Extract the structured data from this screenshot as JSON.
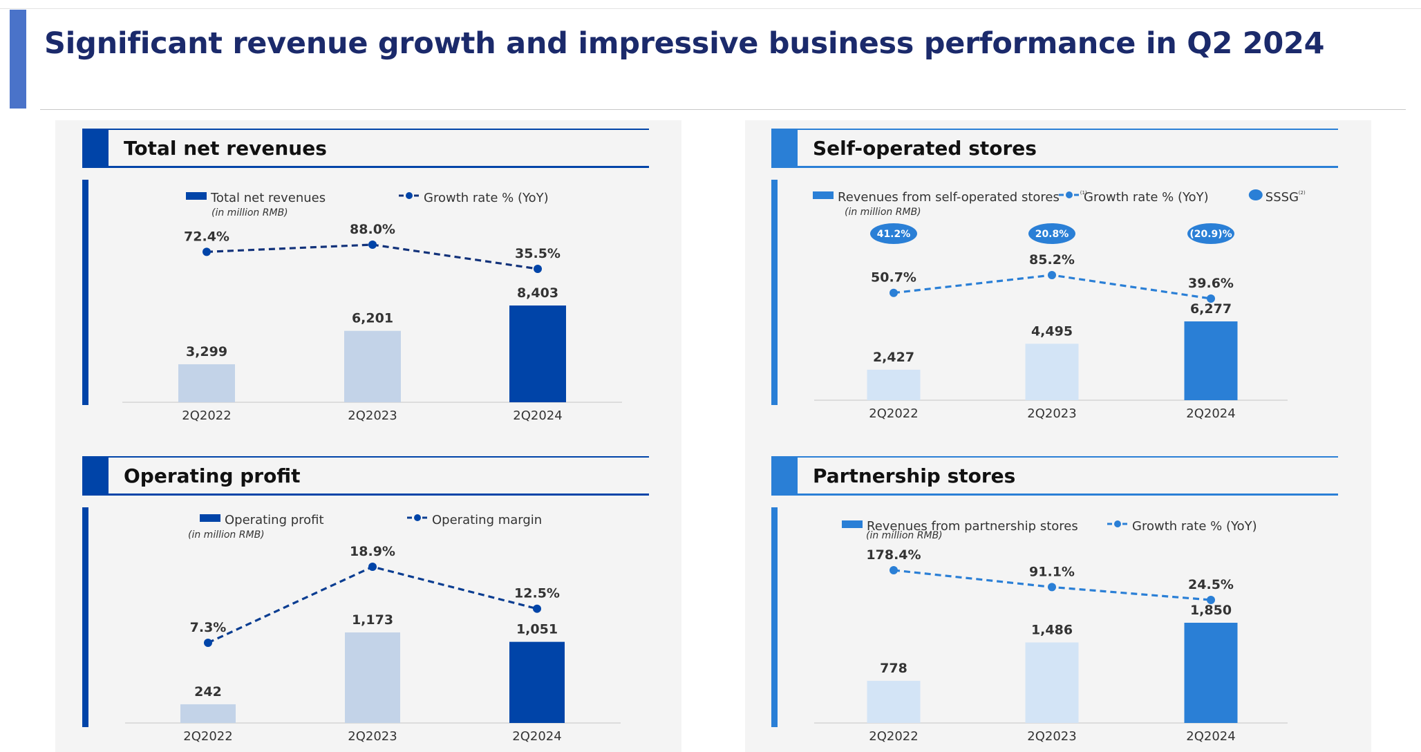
{
  "page_title": "Significant revenue growth and impressive business performance in Q2 2024",
  "colors": {
    "dark_blue": "#0044a8",
    "mid_blue": "#2a7fd6",
    "light_gray_blue": "#c3d3e8",
    "light_blue": "#d3e4f6",
    "title_navy": "#1b2a6b",
    "accent_bar": "#4a73c9"
  },
  "chart_data": [
    {
      "type": "bar",
      "title": "Total net revenues",
      "categories": [
        "2Q2022",
        "2Q2023",
        "2Q2024"
      ],
      "series": [
        {
          "name": "Total net revenues",
          "unit_note": "(in million RMB)",
          "values": [
            3299,
            6201,
            8403
          ],
          "value_labels": [
            "3,299",
            "6,201",
            "8,403"
          ]
        },
        {
          "name": "Growth rate % (YoY)",
          "type": "line",
          "values": [
            72.4,
            88.0,
            35.5
          ],
          "value_labels": [
            "72.4%",
            "88.0%",
            "35.5%"
          ]
        }
      ],
      "legend_position": "top",
      "grid": false
    },
    {
      "type": "bar",
      "title": "Self-operated stores",
      "categories": [
        "2Q2022",
        "2Q2023",
        "2Q2024"
      ],
      "series": [
        {
          "name": "Revenues from self-operated stores",
          "footnote": "(1)",
          "unit_note": "(in million RMB)",
          "values": [
            2427,
            4495,
            6277
          ],
          "value_labels": [
            "2,427",
            "4,495",
            "6,277"
          ]
        },
        {
          "name": "Growth rate % (YoY)",
          "type": "line",
          "values": [
            50.7,
            85.2,
            39.6
          ],
          "value_labels": [
            "50.7%",
            "85.2%",
            "39.6%"
          ]
        },
        {
          "name": "SSSG",
          "footnote": "(2)",
          "type": "badge",
          "values": [
            41.2,
            20.8,
            -20.9
          ],
          "value_labels": [
            "41.2%",
            "20.8%",
            "(20.9)%"
          ]
        }
      ],
      "legend_position": "top",
      "grid": false
    },
    {
      "type": "bar",
      "title": "Operating profit",
      "categories": [
        "2Q2022",
        "2Q2023",
        "2Q2024"
      ],
      "series": [
        {
          "name": "Operating profit",
          "unit_note": "(in million RMB)",
          "values": [
            242,
            1173,
            1051
          ],
          "value_labels": [
            "242",
            "1,173",
            "1,051"
          ]
        },
        {
          "name": "Operating margin",
          "type": "line",
          "values": [
            7.3,
            18.9,
            12.5
          ],
          "value_labels": [
            "7.3%",
            "18.9%",
            "12.5%"
          ]
        }
      ],
      "legend_position": "top",
      "grid": false
    },
    {
      "type": "bar",
      "title": "Partnership stores",
      "categories": [
        "2Q2022",
        "2Q2023",
        "2Q2024"
      ],
      "series": [
        {
          "name": "Revenues from partnership stores",
          "unit_note": "(in million RMB)",
          "values": [
            778,
            1486,
            1850
          ],
          "value_labels": [
            "778",
            "1,486",
            "1,850"
          ]
        },
        {
          "name": "Growth rate % (YoY)",
          "type": "line",
          "values": [
            178.4,
            91.1,
            24.5
          ],
          "value_labels": [
            "178.4%",
            "91.1%",
            "24.5%"
          ]
        }
      ],
      "legend_position": "top",
      "grid": false
    }
  ]
}
